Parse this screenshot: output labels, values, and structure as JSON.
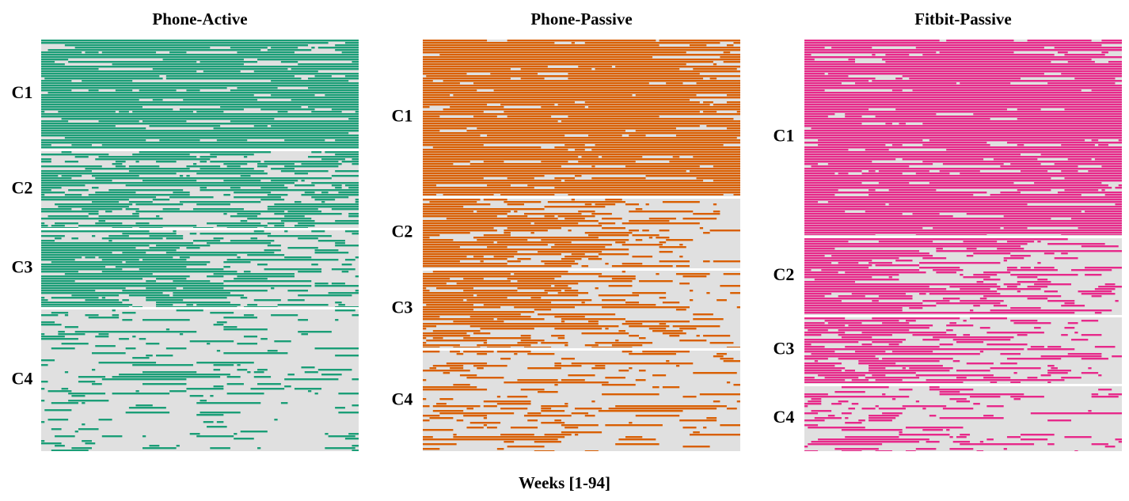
{
  "chart_data": [
    {
      "type": "heatmap",
      "title": "Phone-Active",
      "color": "#1b9e77",
      "categories": [
        "C1",
        "C2",
        "C3",
        "C4"
      ]
    },
    {
      "type": "heatmap",
      "title": "Phone-Passive",
      "color": "#d95f02",
      "categories": [
        "C1",
        "C2",
        "C3",
        "C4"
      ]
    },
    {
      "type": "heatmap",
      "title": "Fitbit-Passive",
      "color": "#e7298a",
      "categories": [
        "C1",
        "C2",
        "C3",
        "C4"
      ]
    }
  ],
  "figure": {
    "xlabel": "Weeks [1-94]"
  }
}
